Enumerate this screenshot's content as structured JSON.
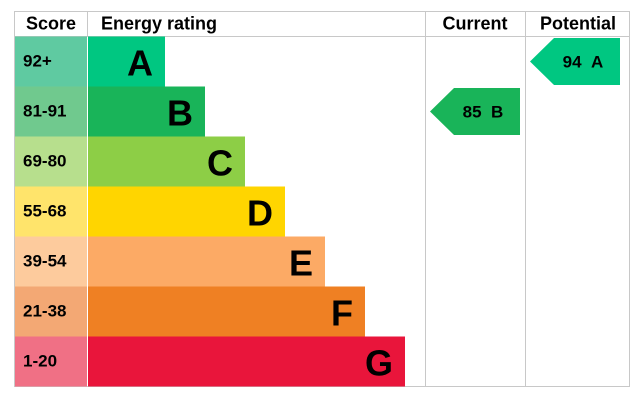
{
  "header": {
    "score": "Score",
    "rating": "Energy rating",
    "current": "Current",
    "potential": "Potential"
  },
  "bands": [
    {
      "score": "92+",
      "letter": "A",
      "color": "#00c781",
      "light": "#5fcaa1"
    },
    {
      "score": "81-91",
      "letter": "B",
      "color": "#19b459",
      "light": "#70c98e"
    },
    {
      "score": "69-80",
      "letter": "C",
      "color": "#8dce46",
      "light": "#b7df8d"
    },
    {
      "score": "55-68",
      "letter": "D",
      "color": "#ffd500",
      "light": "#ffe46b"
    },
    {
      "score": "39-54",
      "letter": "E",
      "color": "#fcaa65",
      "light": "#fdcb9d"
    },
    {
      "score": "21-38",
      "letter": "F",
      "color": "#ef8023",
      "light": "#f3a874"
    },
    {
      "score": "1-20",
      "letter": "G",
      "color": "#e9153b",
      "light": "#f07085"
    }
  ],
  "current": {
    "score": 85,
    "band": "B"
  },
  "potential": {
    "score": 94,
    "band": "A"
  }
}
